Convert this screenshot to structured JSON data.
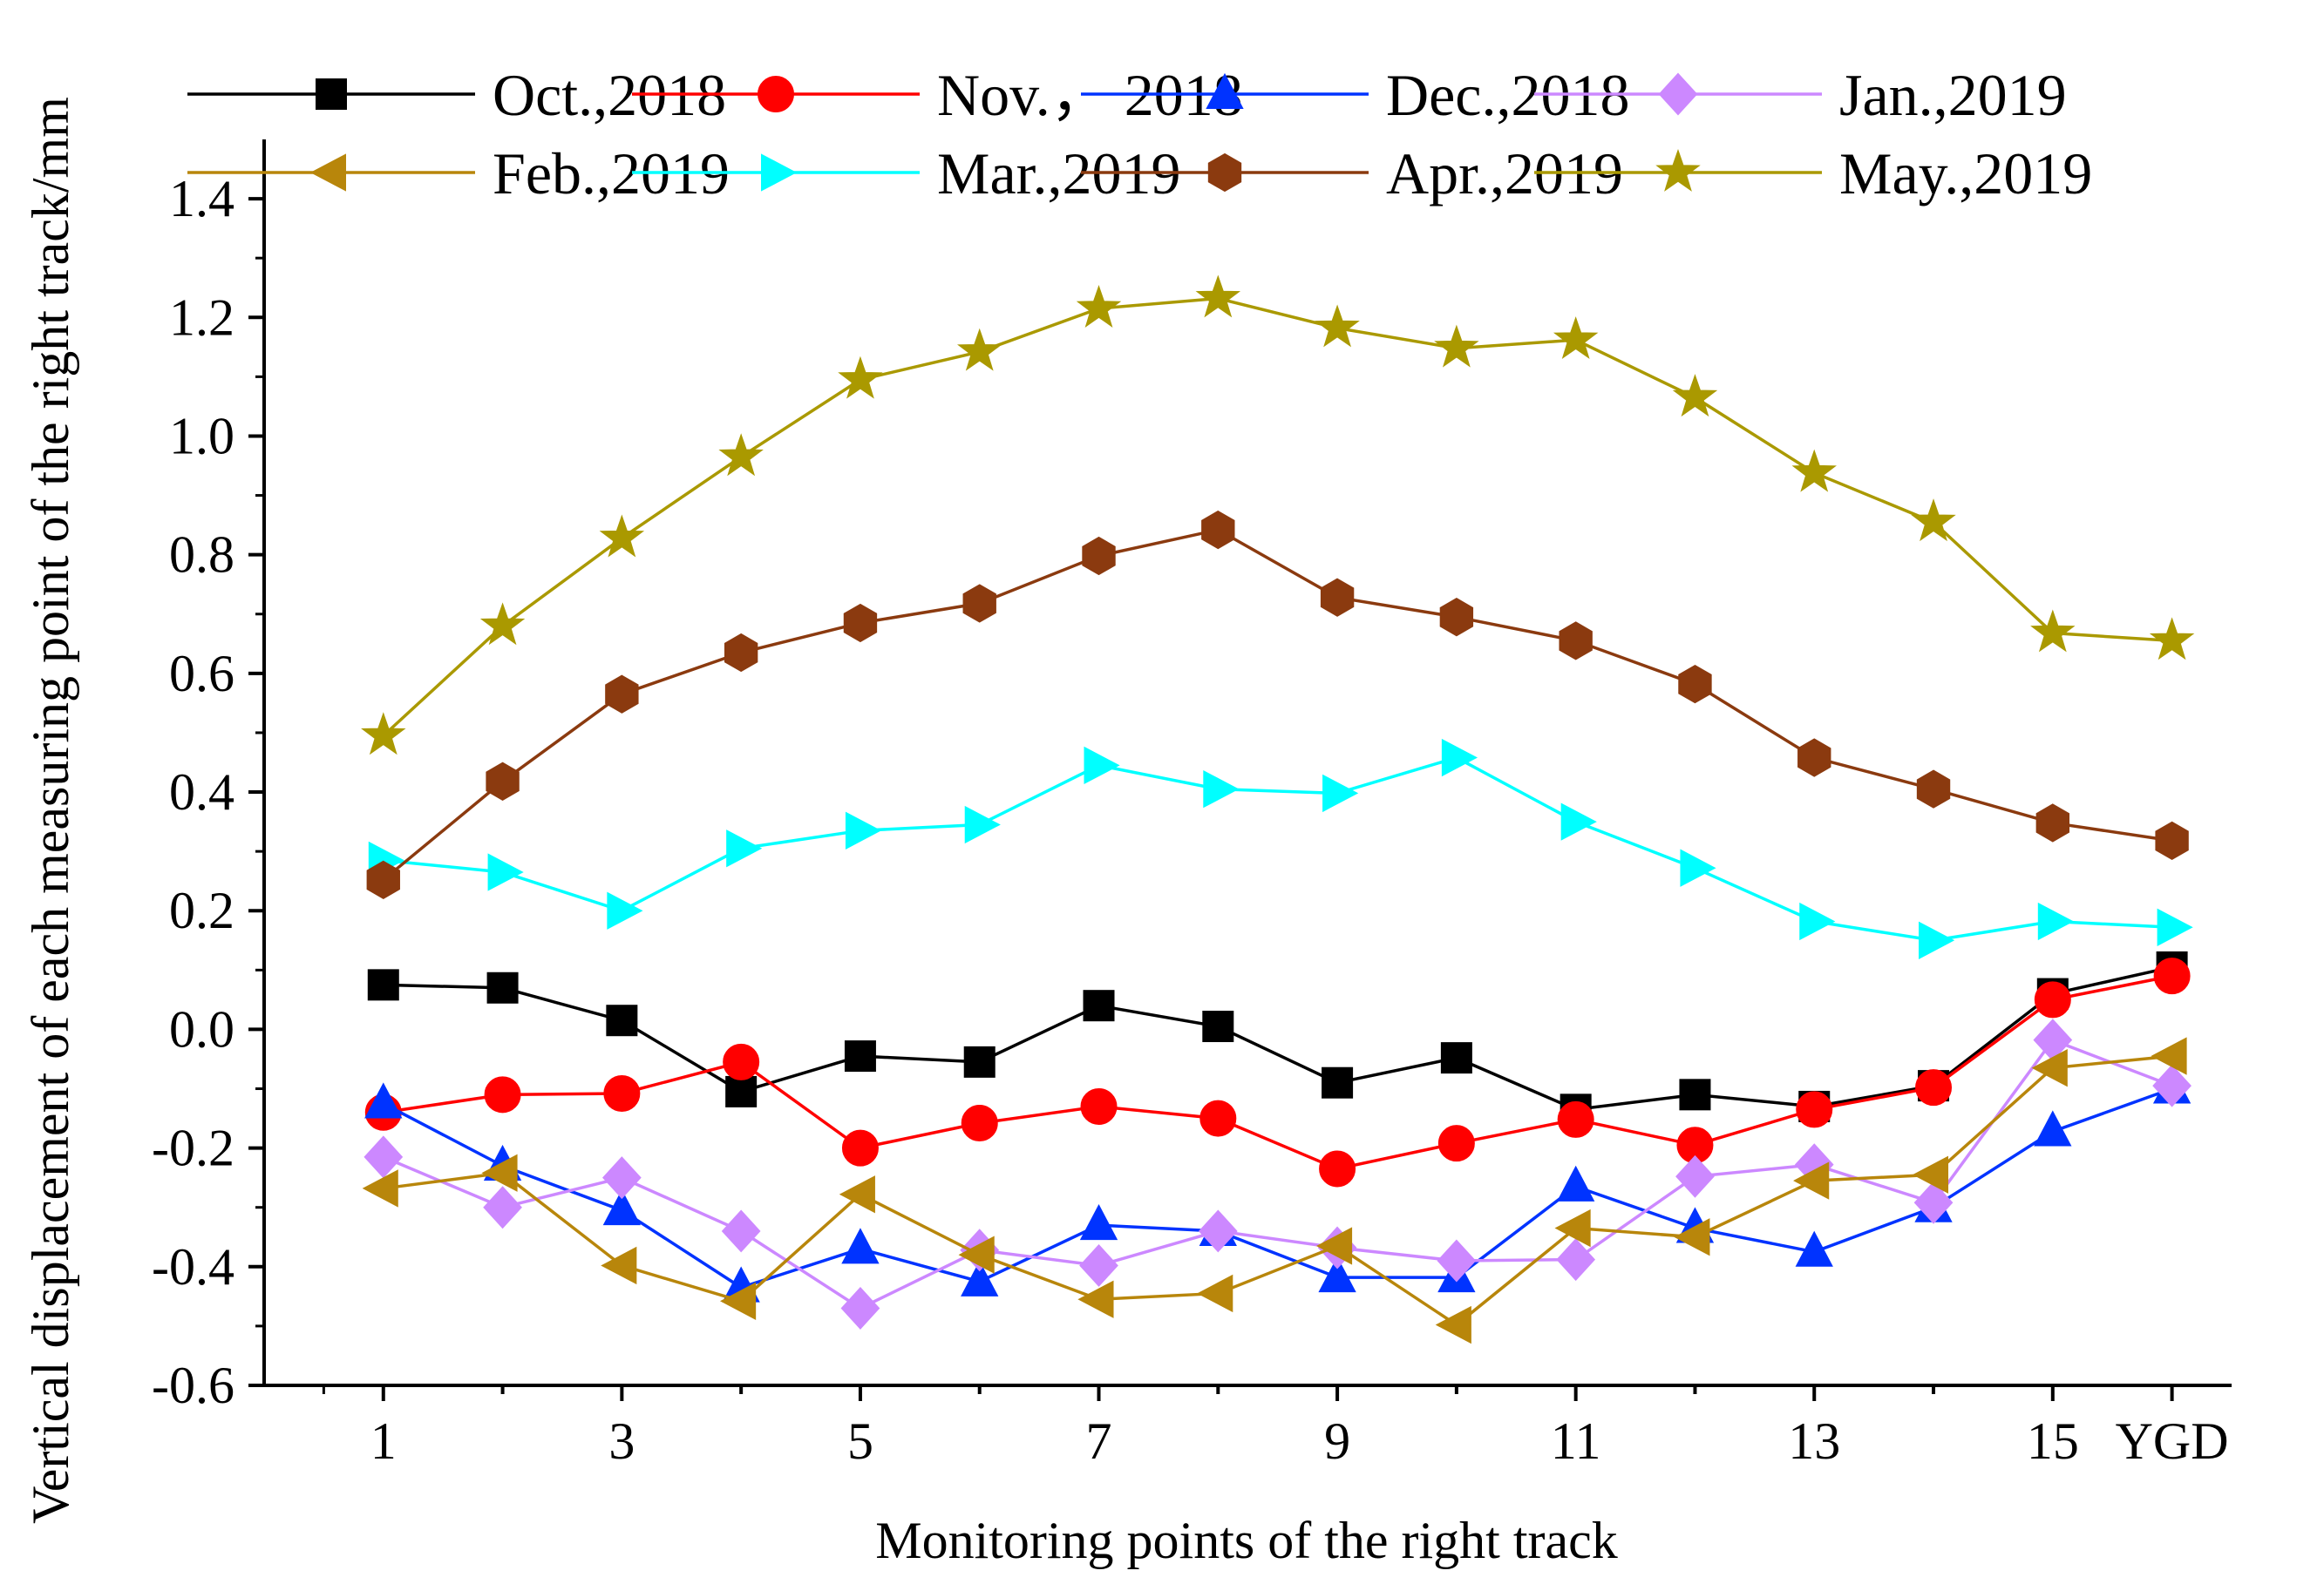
{
  "chart_data": {
    "type": "line",
    "title": "",
    "xlabel": "Monitoring points of the right track",
    "ylabel": "Vertical displacement of each measuring point of the right track/mm",
    "x": [
      1,
      2,
      3,
      4,
      5,
      6,
      7,
      8,
      9,
      10,
      11,
      12,
      13,
      14,
      15,
      16
    ],
    "xlim": [
      0,
      16.5
    ],
    "ylim": [
      -0.6,
      1.5
    ],
    "x_ticks": [
      1,
      3,
      5,
      7,
      9,
      11,
      13,
      15,
      16
    ],
    "x_tick_labels": [
      "1",
      "3",
      "5",
      "7",
      "9",
      "11",
      "13",
      "15",
      "YGD"
    ],
    "y_ticks": [
      -0.6,
      -0.4,
      -0.2,
      0.0,
      0.2,
      0.4,
      0.6,
      0.8,
      1.0,
      1.2,
      1.4
    ],
    "y_tick_labels": [
      "-0.6",
      "-0.4",
      "-0.2",
      "0.0",
      "0.2",
      "0.4",
      "0.6",
      "0.8",
      "1.0",
      "1.2",
      "1.4"
    ],
    "grid": false,
    "legend_position": "top",
    "series": [
      {
        "name": "Oct.,2018",
        "color": "#000000",
        "marker": "square",
        "values": [
          0.075,
          0.07,
          0.015,
          -0.105,
          -0.045,
          -0.055,
          0.04,
          0.005,
          -0.09,
          -0.048,
          -0.135,
          -0.11,
          -0.13,
          -0.095,
          0.06,
          0.105
        ]
      },
      {
        "name": "Nov.， 2018",
        "color": "#ff0000",
        "marker": "circle",
        "values": [
          -0.14,
          -0.11,
          -0.108,
          -0.055,
          -0.2,
          -0.158,
          -0.13,
          -0.15,
          -0.235,
          -0.192,
          -0.152,
          -0.195,
          -0.135,
          -0.098,
          0.05,
          0.09
        ]
      },
      {
        "name": "Dec.,2018",
        "color": "#0033ff",
        "marker": "triangle-up",
        "values": [
          -0.125,
          -0.23,
          -0.305,
          -0.435,
          -0.37,
          -0.425,
          -0.33,
          -0.34,
          -0.418,
          -0.418,
          -0.265,
          -0.335,
          -0.375,
          -0.3,
          -0.172,
          -0.1
        ]
      },
      {
        "name": "Jan.,2019",
        "color": "#cc88ff",
        "marker": "diamond",
        "values": [
          -0.215,
          -0.3,
          -0.25,
          -0.34,
          -0.47,
          -0.372,
          -0.398,
          -0.34,
          -0.368,
          -0.39,
          -0.388,
          -0.248,
          -0.228,
          -0.292,
          -0.018,
          -0.095
        ]
      },
      {
        "name": "Feb.,2019",
        "color": "#b8860b",
        "marker": "triangle-left",
        "values": [
          -0.268,
          -0.242,
          -0.398,
          -0.458,
          -0.278,
          -0.38,
          -0.455,
          -0.445,
          -0.365,
          -0.498,
          -0.335,
          -0.35,
          -0.255,
          -0.245,
          -0.065,
          -0.045
        ]
      },
      {
        "name": "Mar.,2019",
        "color": "#00ffff",
        "marker": "triangle-right",
        "values": [
          0.285,
          0.265,
          0.2,
          0.305,
          0.335,
          0.345,
          0.445,
          0.405,
          0.398,
          0.458,
          0.35,
          0.272,
          0.182,
          0.15,
          0.182,
          0.172
        ]
      },
      {
        "name": "Apr.,2019",
        "color": "#8b3a0f",
        "marker": "hexagon",
        "values": [
          0.252,
          0.418,
          0.565,
          0.635,
          0.685,
          0.718,
          0.798,
          0.842,
          0.728,
          0.695,
          0.655,
          0.582,
          0.458,
          0.405,
          0.348,
          0.318
        ]
      },
      {
        "name": "May.,2019",
        "color": "#aa9900",
        "marker": "star",
        "values": [
          0.495,
          0.68,
          0.828,
          0.965,
          1.095,
          1.142,
          1.215,
          1.232,
          1.182,
          1.148,
          1.162,
          1.065,
          0.938,
          0.855,
          0.668,
          0.655
        ]
      }
    ]
  }
}
